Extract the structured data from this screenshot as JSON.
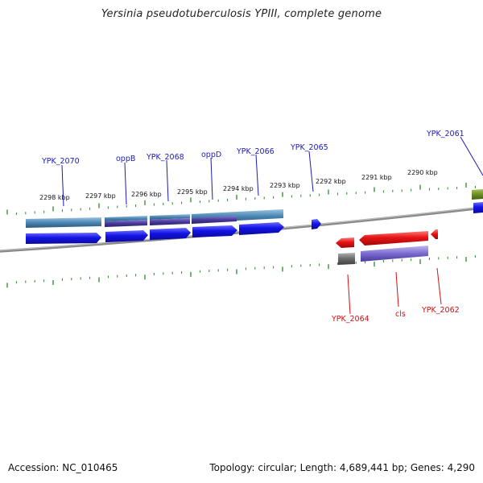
{
  "title": "Yersinia pseudotuberculosis YPIII, complete genome",
  "footer": {
    "accession": "Accession: NC_010465",
    "info": "Topology: circular; Length: 4,689,441 bp; Genes: 4,290"
  },
  "scale_labels": [
    "2298 kbp",
    "2297 kbp",
    "2296 kbp",
    "2295 kbp",
    "2294 kbp",
    "2293 kbp",
    "2292 kbp",
    "2291 kbp",
    "2290 kbp"
  ],
  "upper_gene_labels": [
    "YPK_2070",
    "oppB",
    "YPK_2068",
    "oppD",
    "YPK_2066",
    "YPK_2065",
    "YPK_2061"
  ],
  "lower_gene_labels": [
    "YPK_2064",
    "cls",
    "YPK_2062"
  ],
  "colors": {
    "forward_gene": "#1414e6",
    "reverse_gene": "#e61414",
    "label_forward": "#1a1ab8",
    "label_reverse": "#d01010",
    "tick": "#2a8a2a",
    "backbone": "#888888",
    "cog_teal": "#4a86b4",
    "cog_purple": "#4a3a9a",
    "cog_gray": "#707070",
    "cog_olive": "#6b8e23"
  }
}
